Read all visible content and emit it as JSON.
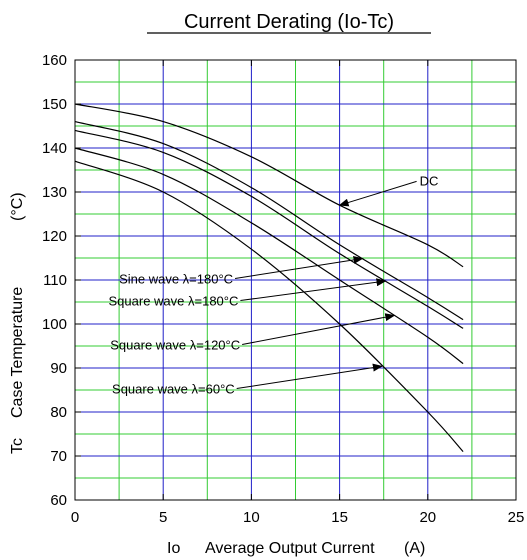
{
  "chart_data": {
    "type": "line",
    "title": "Current Derating (Io-Tc)",
    "xlabel": {
      "symbol": "Io",
      "text": "Average Output Current",
      "unit": "(A)"
    },
    "ylabel": {
      "symbol": "Tc",
      "text": "Case Temperature",
      "unit": "(°C)"
    },
    "xlim": [
      0,
      25
    ],
    "ylim": [
      60,
      160
    ],
    "x_major_ticks": [
      0,
      5,
      10,
      15,
      20,
      25
    ],
    "y_major_ticks": [
      60,
      70,
      80,
      90,
      100,
      110,
      120,
      130,
      140,
      150,
      160
    ],
    "x_minor_step": 2.5,
    "y_minor_step": 5,
    "grid": true,
    "grid_colors": {
      "major": "#2020c8",
      "minor": "#33cc33"
    },
    "line_color": "#000000",
    "series": [
      {
        "name": "DC",
        "x": [
          0,
          5,
          10,
          15,
          20,
          22
        ],
        "y": [
          150,
          146,
          138,
          127,
          118,
          113
        ]
      },
      {
        "name": "Sine wave λ=180°C",
        "x": [
          0,
          5,
          10,
          15,
          20,
          22
        ],
        "y": [
          146,
          141,
          131,
          118,
          106,
          101
        ]
      },
      {
        "name": "Square wave λ=180°C",
        "x": [
          0,
          5,
          10,
          15,
          20,
          22
        ],
        "y": [
          144,
          139,
          129,
          116,
          104,
          99
        ]
      },
      {
        "name": "Square wave λ=120°C",
        "x": [
          0,
          5,
          10,
          15,
          20,
          22
        ],
        "y": [
          140,
          134,
          123,
          110,
          97,
          91
        ]
      },
      {
        "name": "Square wave λ=60°C",
        "x": [
          0,
          5,
          10,
          15,
          20,
          22
        ],
        "y": [
          137,
          130,
          117,
          100,
          80,
          71
        ]
      }
    ],
    "annotations": [
      {
        "label": "DC",
        "series": 0
      },
      {
        "label": "Sine wave λ=180°C",
        "series": 1
      },
      {
        "label": "Square wave λ=180°C",
        "series": 2
      },
      {
        "label": "Square wave λ=120°C",
        "series": 3
      },
      {
        "label": "Square wave λ=60°C",
        "series": 4
      }
    ]
  }
}
